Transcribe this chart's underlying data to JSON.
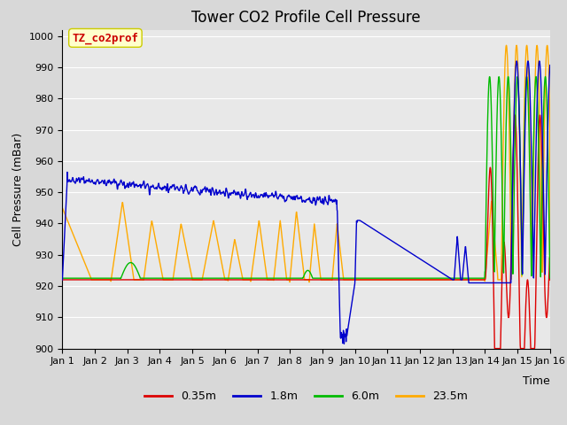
{
  "title": "Tower CO2 Profile Cell Pressure",
  "ylabel": "Cell Pressure (mBar)",
  "xlabel": "Time",
  "xlim": [
    0,
    15
  ],
  "ylim": [
    900,
    1002
  ],
  "yticks": [
    900,
    910,
    920,
    930,
    940,
    950,
    960,
    970,
    980,
    990,
    1000
  ],
  "xtick_labels": [
    "Jan 1",
    "Jan 2",
    "Jan 3",
    "Jan 4",
    "Jan 5",
    "Jan 6",
    "Jan 7",
    "Jan 8",
    "Jan 9",
    "Jan 10",
    "Jan 11",
    "Jan 12",
    "Jan 13",
    "Jan 14",
    "Jan 15",
    "Jan 16"
  ],
  "legend_label": "TZ_co2prof",
  "legend_box_color": "#ffffcc",
  "legend_box_edge": "#cccc00",
  "legend_text_color": "#cc0000",
  "series": {
    "0.35m": {
      "color": "#dd0000",
      "lw": 1.0
    },
    "1.8m": {
      "color": "#0000cc",
      "lw": 1.0
    },
    "6.0m": {
      "color": "#00bb00",
      "lw": 1.0
    },
    "23.5m": {
      "color": "#ffaa00",
      "lw": 1.0
    }
  },
  "background_color": "#e8e8e8",
  "grid_color": "#ffffff",
  "title_fontsize": 12,
  "axis_label_fontsize": 9,
  "tick_fontsize": 8
}
